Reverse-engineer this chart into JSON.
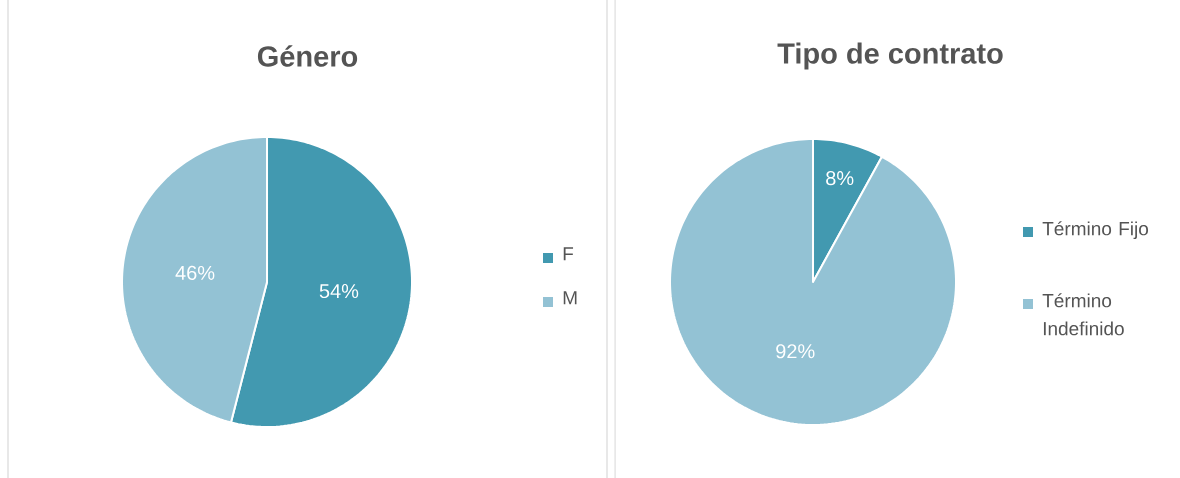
{
  "chart_data": [
    {
      "type": "pie",
      "title": "Género",
      "categories": [
        "F",
        "M"
      ],
      "values": [
        54,
        46
      ],
      "value_labels": [
        "54%",
        "46%"
      ],
      "colors": [
        "#4299b0",
        "#93c2d4"
      ],
      "legend": "right"
    },
    {
      "type": "pie",
      "title": "Tipo de contrato",
      "categories": [
        "Término Fijo",
        "Término Indefinido"
      ],
      "values": [
        8,
        92
      ],
      "value_labels": [
        "8%",
        "92%"
      ],
      "colors": [
        "#4299b0",
        "#93c2d4"
      ],
      "legend": "right"
    }
  ]
}
